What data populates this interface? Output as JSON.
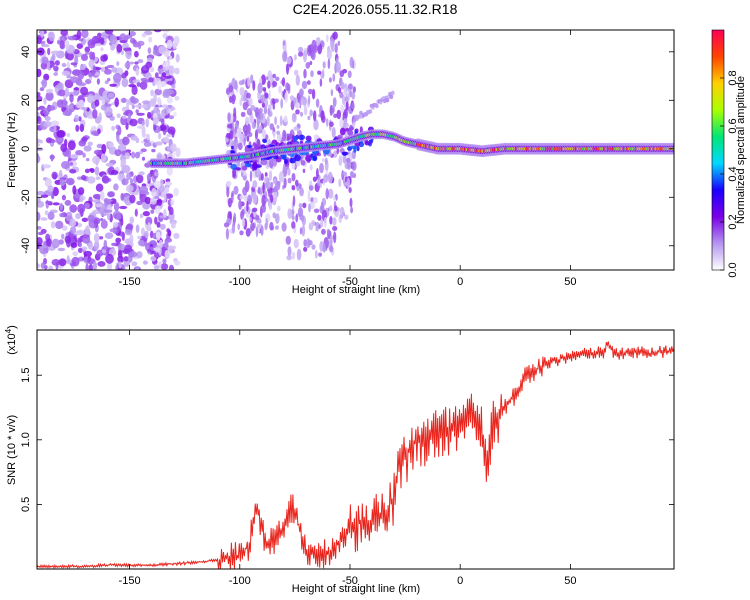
{
  "figure": {
    "title": "C2E4.2026.055.11.32.R18"
  },
  "chart_data": [
    {
      "type": "heatmap",
      "title": "C2E4.2026.055.11.32.R18",
      "xlabel": "Height of straight line (km)",
      "ylabel": "Frequency (Hz)",
      "xlim": [
        -192,
        97
      ],
      "ylim": [
        -50,
        49
      ],
      "xticks": [
        -150,
        -100,
        -50,
        0,
        50
      ],
      "yticks": [
        -40,
        -20,
        0,
        20,
        40
      ],
      "colorbar": {
        "label": "Normalized spectral amplitude",
        "range": [
          0,
          1
        ],
        "ticks": [
          0.0,
          0.2,
          0.4,
          0.6,
          0.8
        ],
        "tick_labels": [
          "0.0",
          "0.2",
          "0.4",
          "0.6",
          "0.8"
        ],
        "colormap": [
          "#ffffff",
          "#b494f0",
          "#7a00e6",
          "#1a00ff",
          "#00d8ff",
          "#00e676",
          "#aaff00",
          "#ffd000",
          "#ff4400",
          "#ff0055"
        ]
      },
      "ridge": {
        "description_free": true,
        "x": [
          -135,
          -125,
          -115,
          -105,
          -95,
          -85,
          -75,
          -65,
          -55,
          -45,
          -40,
          -35,
          -30,
          -25,
          -20,
          -15,
          -10,
          0,
          10,
          20,
          40,
          60,
          80,
          95
        ],
        "y": [
          -6,
          -6,
          -5,
          -4,
          -3,
          -1,
          0,
          1,
          2,
          5,
          6,
          6,
          5,
          3,
          2,
          1,
          0,
          0,
          -1,
          0,
          0,
          0,
          0,
          0
        ]
      },
      "grid": false,
      "legend": "colorbar-right"
    },
    {
      "type": "line",
      "xlabel": "Height of straight line (km)",
      "ylabel": "SNR (10 * v/v)",
      "y_multiplier_label": "(x10",
      "y_multiplier_exp": "4",
      "xlim": [
        -192,
        97
      ],
      "ylim": [
        0,
        1.85
      ],
      "xticks": [
        -150,
        -100,
        -50,
        0,
        50
      ],
      "yticks": [
        0.5,
        1.0,
        1.5
      ],
      "ytick_labels": [
        "0.5",
        "1.0",
        "1.5"
      ],
      "series": [
        {
          "color": "#e8261e",
          "x": [
            -192,
            -180,
            -170,
            -160,
            -150,
            -140,
            -130,
            -120,
            -110,
            -105,
            -100,
            -96,
            -94,
            -92,
            -90,
            -88,
            -85,
            -80,
            -78,
            -76,
            -74,
            -72,
            -70,
            -65,
            -60,
            -55,
            -50,
            -45,
            -40,
            -35,
            -30,
            -28,
            -25,
            -20,
            -15,
            -10,
            -5,
            0,
            5,
            10,
            12,
            15,
            20,
            25,
            30,
            35,
            40,
            45,
            50,
            55,
            60,
            65,
            67,
            70,
            75,
            80,
            85,
            90,
            95,
            97
          ],
          "y": [
            0.02,
            0.02,
            0.02,
            0.03,
            0.03,
            0.03,
            0.04,
            0.05,
            0.07,
            0.09,
            0.11,
            0.18,
            0.35,
            0.48,
            0.3,
            0.2,
            0.22,
            0.3,
            0.45,
            0.48,
            0.4,
            0.25,
            0.15,
            0.12,
            0.13,
            0.2,
            0.3,
            0.38,
            0.35,
            0.4,
            0.55,
            0.75,
            0.85,
            1.0,
            1.0,
            1.05,
            1.05,
            1.1,
            1.15,
            1.05,
            0.75,
            1.15,
            1.25,
            1.35,
            1.5,
            1.55,
            1.6,
            1.62,
            1.65,
            1.66,
            1.67,
            1.68,
            1.75,
            1.66,
            1.67,
            1.68,
            1.67,
            1.68,
            1.68,
            1.7
          ]
        }
      ],
      "grid": false
    }
  ]
}
